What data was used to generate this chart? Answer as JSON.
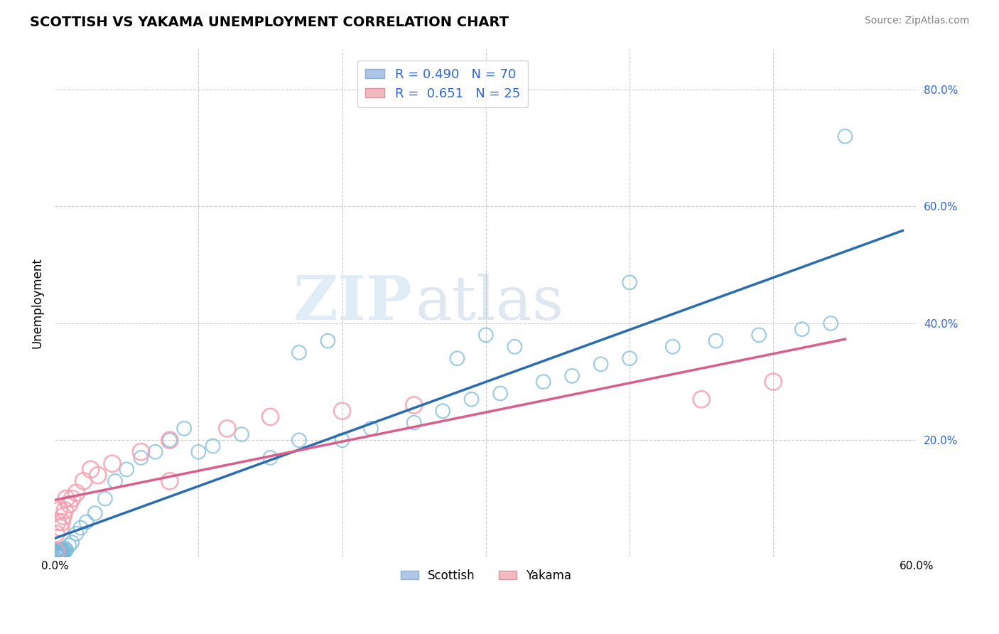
{
  "title": "SCOTTISH VS YAKAMA UNEMPLOYMENT CORRELATION CHART",
  "source": "Source: ZipAtlas.com",
  "ylabel": "Unemployment",
  "xlim": [
    0.0,
    0.6
  ],
  "ylim": [
    0.0,
    0.87
  ],
  "scottish_color": "#7ab8d9",
  "yakama_color": "#f4a0b0",
  "scottish_line_color": "#2b6cb0",
  "yakama_line_color": "#d95f8a",
  "watermark": "ZIPatlas",
  "grid_color": "#cccccc",
  "background_color": "#ffffff",
  "scottish_legend_color": "#aec6e8",
  "yakama_legend_color": "#f4b8c1",
  "scottish_x": [
    0.001,
    0.001,
    0.001,
    0.001,
    0.001,
    0.001,
    0.001,
    0.001,
    0.001,
    0.001,
    0.002,
    0.002,
    0.002,
    0.002,
    0.002,
    0.003,
    0.003,
    0.003,
    0.003,
    0.004,
    0.004,
    0.004,
    0.005,
    0.005,
    0.005,
    0.006,
    0.006,
    0.007,
    0.007,
    0.008,
    0.01,
    0.012,
    0.015,
    0.018,
    0.022,
    0.028,
    0.035,
    0.042,
    0.05,
    0.06,
    0.07,
    0.08,
    0.09,
    0.1,
    0.11,
    0.13,
    0.15,
    0.17,
    0.2,
    0.22,
    0.25,
    0.27,
    0.29,
    0.31,
    0.34,
    0.36,
    0.38,
    0.4,
    0.43,
    0.46,
    0.49,
    0.52,
    0.54,
    0.3,
    0.32,
    0.28,
    0.17,
    0.19,
    0.4,
    0.55
  ],
  "scottish_y": [
    0.005,
    0.01,
    0.008,
    0.006,
    0.012,
    0.003,
    0.007,
    0.004,
    0.009,
    0.002,
    0.008,
    0.01,
    0.006,
    0.004,
    0.012,
    0.007,
    0.01,
    0.005,
    0.008,
    0.006,
    0.01,
    0.012,
    0.008,
    0.01,
    0.005,
    0.01,
    0.012,
    0.015,
    0.01,
    0.012,
    0.02,
    0.025,
    0.04,
    0.05,
    0.06,
    0.075,
    0.1,
    0.13,
    0.15,
    0.17,
    0.18,
    0.2,
    0.22,
    0.18,
    0.19,
    0.21,
    0.17,
    0.2,
    0.2,
    0.22,
    0.23,
    0.25,
    0.27,
    0.28,
    0.3,
    0.31,
    0.33,
    0.34,
    0.36,
    0.37,
    0.38,
    0.39,
    0.4,
    0.38,
    0.36,
    0.34,
    0.35,
    0.37,
    0.47,
    0.72
  ],
  "yakama_x": [
    0.001,
    0.001,
    0.002,
    0.003,
    0.004,
    0.005,
    0.006,
    0.007,
    0.008,
    0.01,
    0.012,
    0.015,
    0.02,
    0.025,
    0.04,
    0.06,
    0.08,
    0.12,
    0.15,
    0.2,
    0.25,
    0.45,
    0.5,
    0.08,
    0.03
  ],
  "yakama_y": [
    0.01,
    0.04,
    0.06,
    0.08,
    0.05,
    0.06,
    0.07,
    0.08,
    0.1,
    0.09,
    0.1,
    0.11,
    0.13,
    0.15,
    0.16,
    0.18,
    0.2,
    0.22,
    0.24,
    0.25,
    0.26,
    0.27,
    0.3,
    0.13,
    0.14
  ]
}
